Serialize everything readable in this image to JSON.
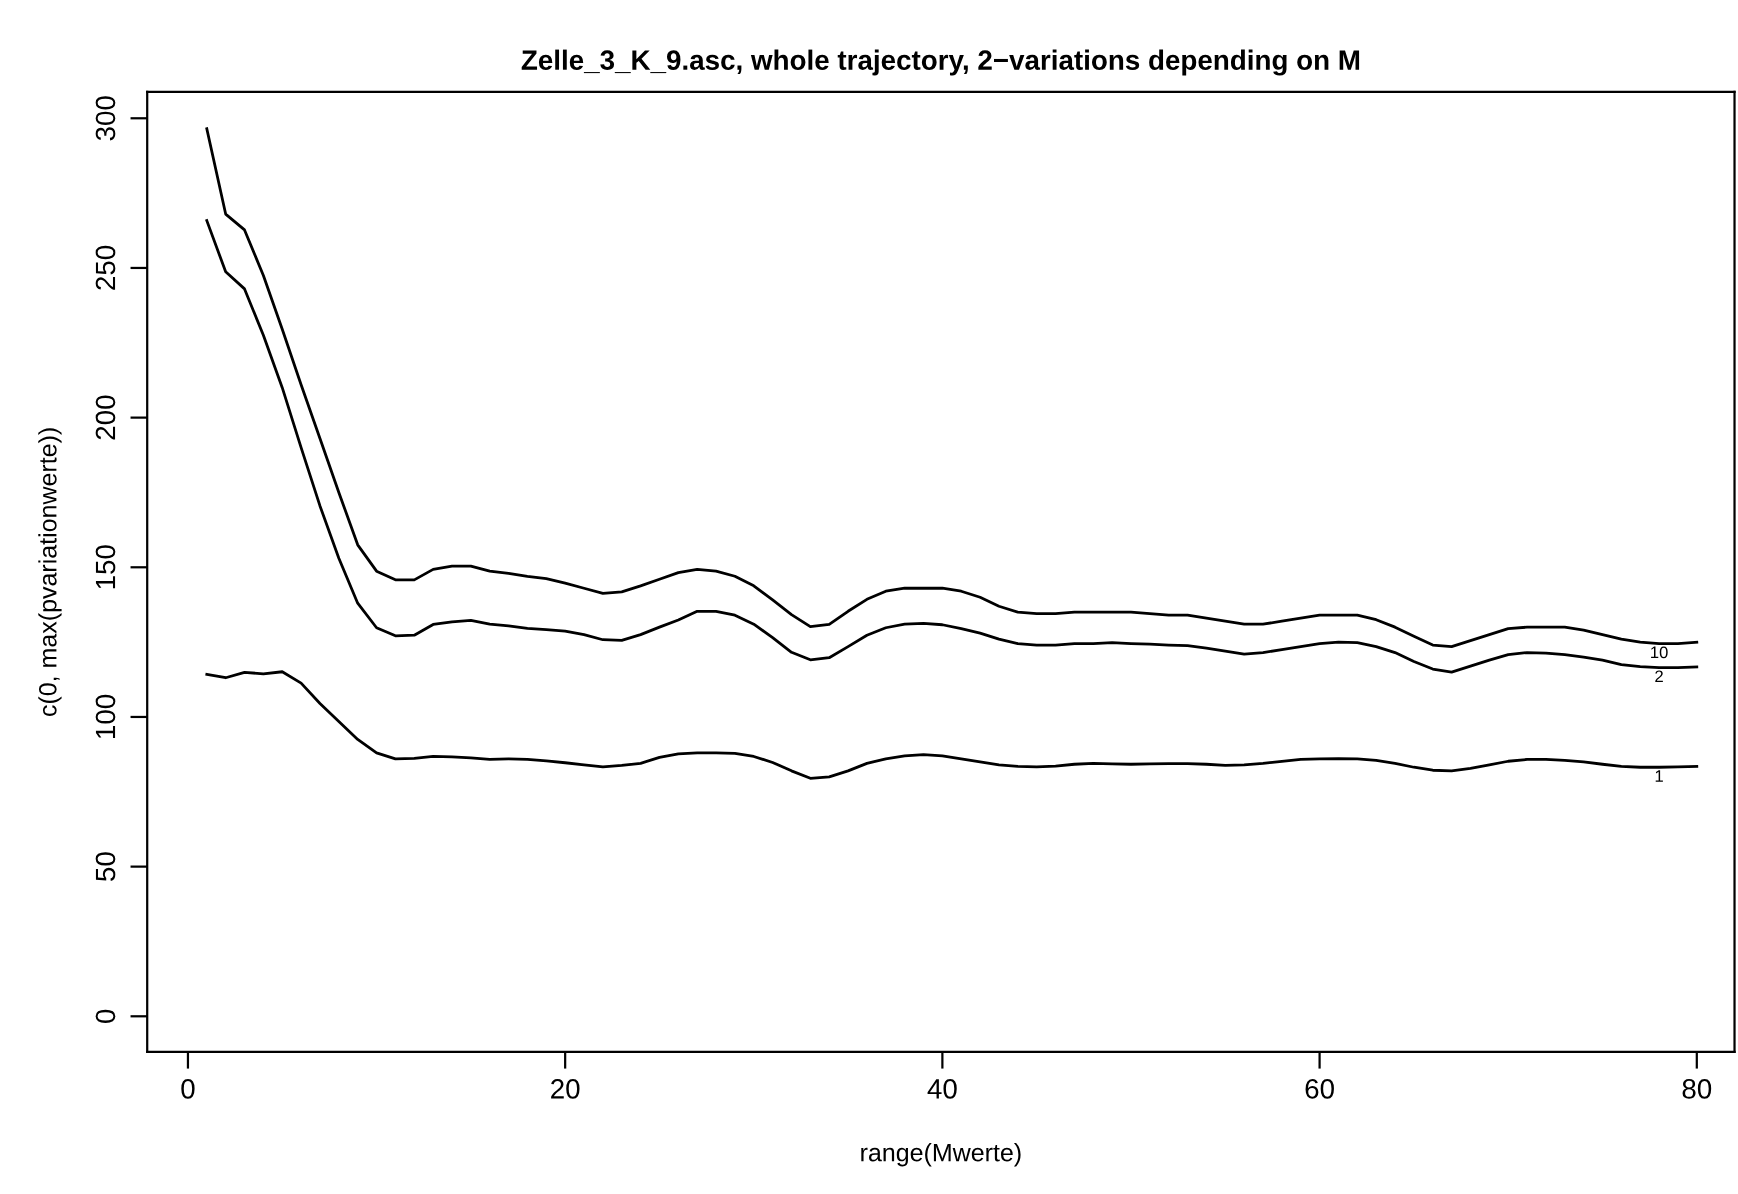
{
  "chart_data": {
    "type": "line",
    "title": "Zelle_3_K_9.asc, whole trajectory, 2−variations depending on M",
    "xlabel": "range(Mwerte)",
    "ylabel": "c(0, max(pvariationwerte))",
    "x": [
      1,
      2,
      3,
      4,
      5,
      6,
      7,
      8,
      9,
      10,
      11,
      12,
      13,
      14,
      15,
      16,
      17,
      18,
      19,
      20,
      21,
      22,
      23,
      24,
      25,
      26,
      27,
      28,
      29,
      30,
      31,
      32,
      33,
      34,
      35,
      36,
      37,
      38,
      39,
      40,
      41,
      42,
      43,
      44,
      45,
      46,
      47,
      48,
      49,
      50,
      51,
      52,
      53,
      54,
      55,
      56,
      57,
      58,
      59,
      60,
      61,
      62,
      63,
      64,
      65,
      66,
      67,
      68,
      69,
      70,
      71,
      72,
      73,
      74,
      75,
      76,
      77,
      78,
      79,
      80
    ],
    "series": [
      {
        "name": "1",
        "color": "#000000",
        "values": [
          114.2,
          113.1,
          114.9,
          114.4,
          115.1,
          111.3,
          104.5,
          98.5,
          92.5,
          88,
          86,
          86.2,
          86.8,
          86.7,
          86.3,
          85.8,
          86,
          85.8,
          85.3,
          84.7,
          84,
          83.3,
          83.8,
          84.5,
          86.5,
          87.7,
          88,
          88,
          87.8,
          86.8,
          84.8,
          82,
          79.5,
          80,
          82,
          84.5,
          86,
          87,
          87.4,
          87,
          86,
          85,
          84,
          83.5,
          83.3,
          83.6,
          84.2,
          84.5,
          84.3,
          84.2,
          84.3,
          84.4,
          84.4,
          84.2,
          83.8,
          84,
          84.5,
          85.2,
          85.8,
          86,
          86.1,
          86,
          85.5,
          84.5,
          83.2,
          82.2,
          82,
          82.8,
          84,
          85.2,
          85.8,
          85.8,
          85.5,
          85,
          84.2,
          83.5,
          83.2,
          83.2,
          83.3,
          83.5
        ]
      },
      {
        "name": "2",
        "color": "#000000",
        "values": [
          265.8,
          248.7,
          243,
          227.5,
          210,
          190,
          170.5,
          153,
          138,
          129.8,
          127.1,
          127.3,
          130.9,
          131.8,
          132.3,
          131,
          130.4,
          129.6,
          129.2,
          128.7,
          127.5,
          125.8,
          125.6,
          127.5,
          130,
          132.4,
          135.3,
          135.3,
          134,
          131,
          126.5,
          121.6,
          119.1,
          119.8,
          123.5,
          127.3,
          129.8,
          131,
          131.3,
          130.8,
          129.5,
          128,
          126,
          124.5,
          124,
          124,
          124.5,
          124.5,
          124.8,
          124.5,
          124.3,
          124,
          123.8,
          123,
          122,
          121,
          121.5,
          122.5,
          123.5,
          124.5,
          125,
          124.8,
          123.5,
          121.5,
          118.5,
          116,
          115,
          117,
          119,
          120.8,
          121.5,
          121.3,
          120.8,
          120,
          119,
          117.5,
          116.8,
          116.5,
          116.5,
          116.7
        ]
      },
      {
        "name": "10",
        "color": "#000000",
        "values": [
          296.5,
          268,
          262.7,
          247.5,
          229.5,
          211,
          193,
          175,
          157.5,
          148.7,
          145.8,
          145.8,
          149.3,
          150.4,
          150.4,
          148.7,
          148,
          147,
          146.2,
          144.7,
          143,
          141.3,
          141.8,
          143.8,
          146,
          148.2,
          149.3,
          148.7,
          147,
          143.8,
          139.1,
          134.2,
          130.2,
          130.9,
          135.3,
          139.3,
          142,
          143,
          143,
          143,
          142,
          140,
          137,
          135,
          134.5,
          134.5,
          135,
          135,
          135,
          135,
          134.5,
          134,
          134,
          133,
          132,
          131,
          131,
          132,
          133,
          134,
          134,
          134,
          132.5,
          130,
          127,
          124,
          123.5,
          125.5,
          127.5,
          129.5,
          130,
          130,
          130,
          129,
          127.5,
          126,
          125,
          124.5,
          124.5,
          125
        ]
      }
    ],
    "xlim": [
      -2.16,
      82.0
    ],
    "ylim": [
      -11.9,
      308.8
    ],
    "xticks": [
      0,
      20,
      40,
      60,
      80
    ],
    "yticks": [
      0,
      50,
      100,
      150,
      200,
      250,
      300
    ],
    "grid": false,
    "legend": false
  }
}
